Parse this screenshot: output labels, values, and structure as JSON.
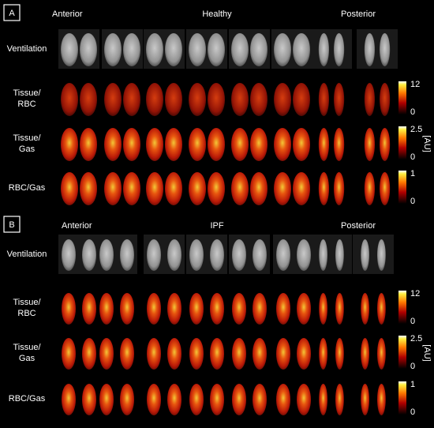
{
  "panels": [
    {
      "label": "A",
      "title": "Healthy",
      "anterior": "Anterior",
      "posterior": "Posterior",
      "rows": [
        [
          "Ventilation"
        ],
        [
          "Tissue/",
          "RBC"
        ],
        [
          "Tissue/",
          "Gas"
        ],
        [
          "RBC/Gas"
        ]
      ],
      "colorbars": [
        {
          "max": "12",
          "min": "0"
        },
        {
          "max": "2.5",
          "min": "0"
        },
        {
          "max": "1",
          "min": "0"
        }
      ],
      "unit": "[AU]"
    },
    {
      "label": "B",
      "title": "IPF",
      "anterior": "Anterior",
      "posterior": "Posterior",
      "rows": [
        [
          "Ventilation"
        ],
        [
          "Tissue/",
          "RBC"
        ],
        [
          "Tissue/",
          "Gas"
        ],
        [
          "RBC/Gas"
        ]
      ],
      "colorbars": [
        {
          "max": "12",
          "min": "0"
        },
        {
          "max": "2.5",
          "min": "0"
        },
        {
          "max": "1",
          "min": "0"
        }
      ],
      "unit": "[AU]"
    }
  ]
}
